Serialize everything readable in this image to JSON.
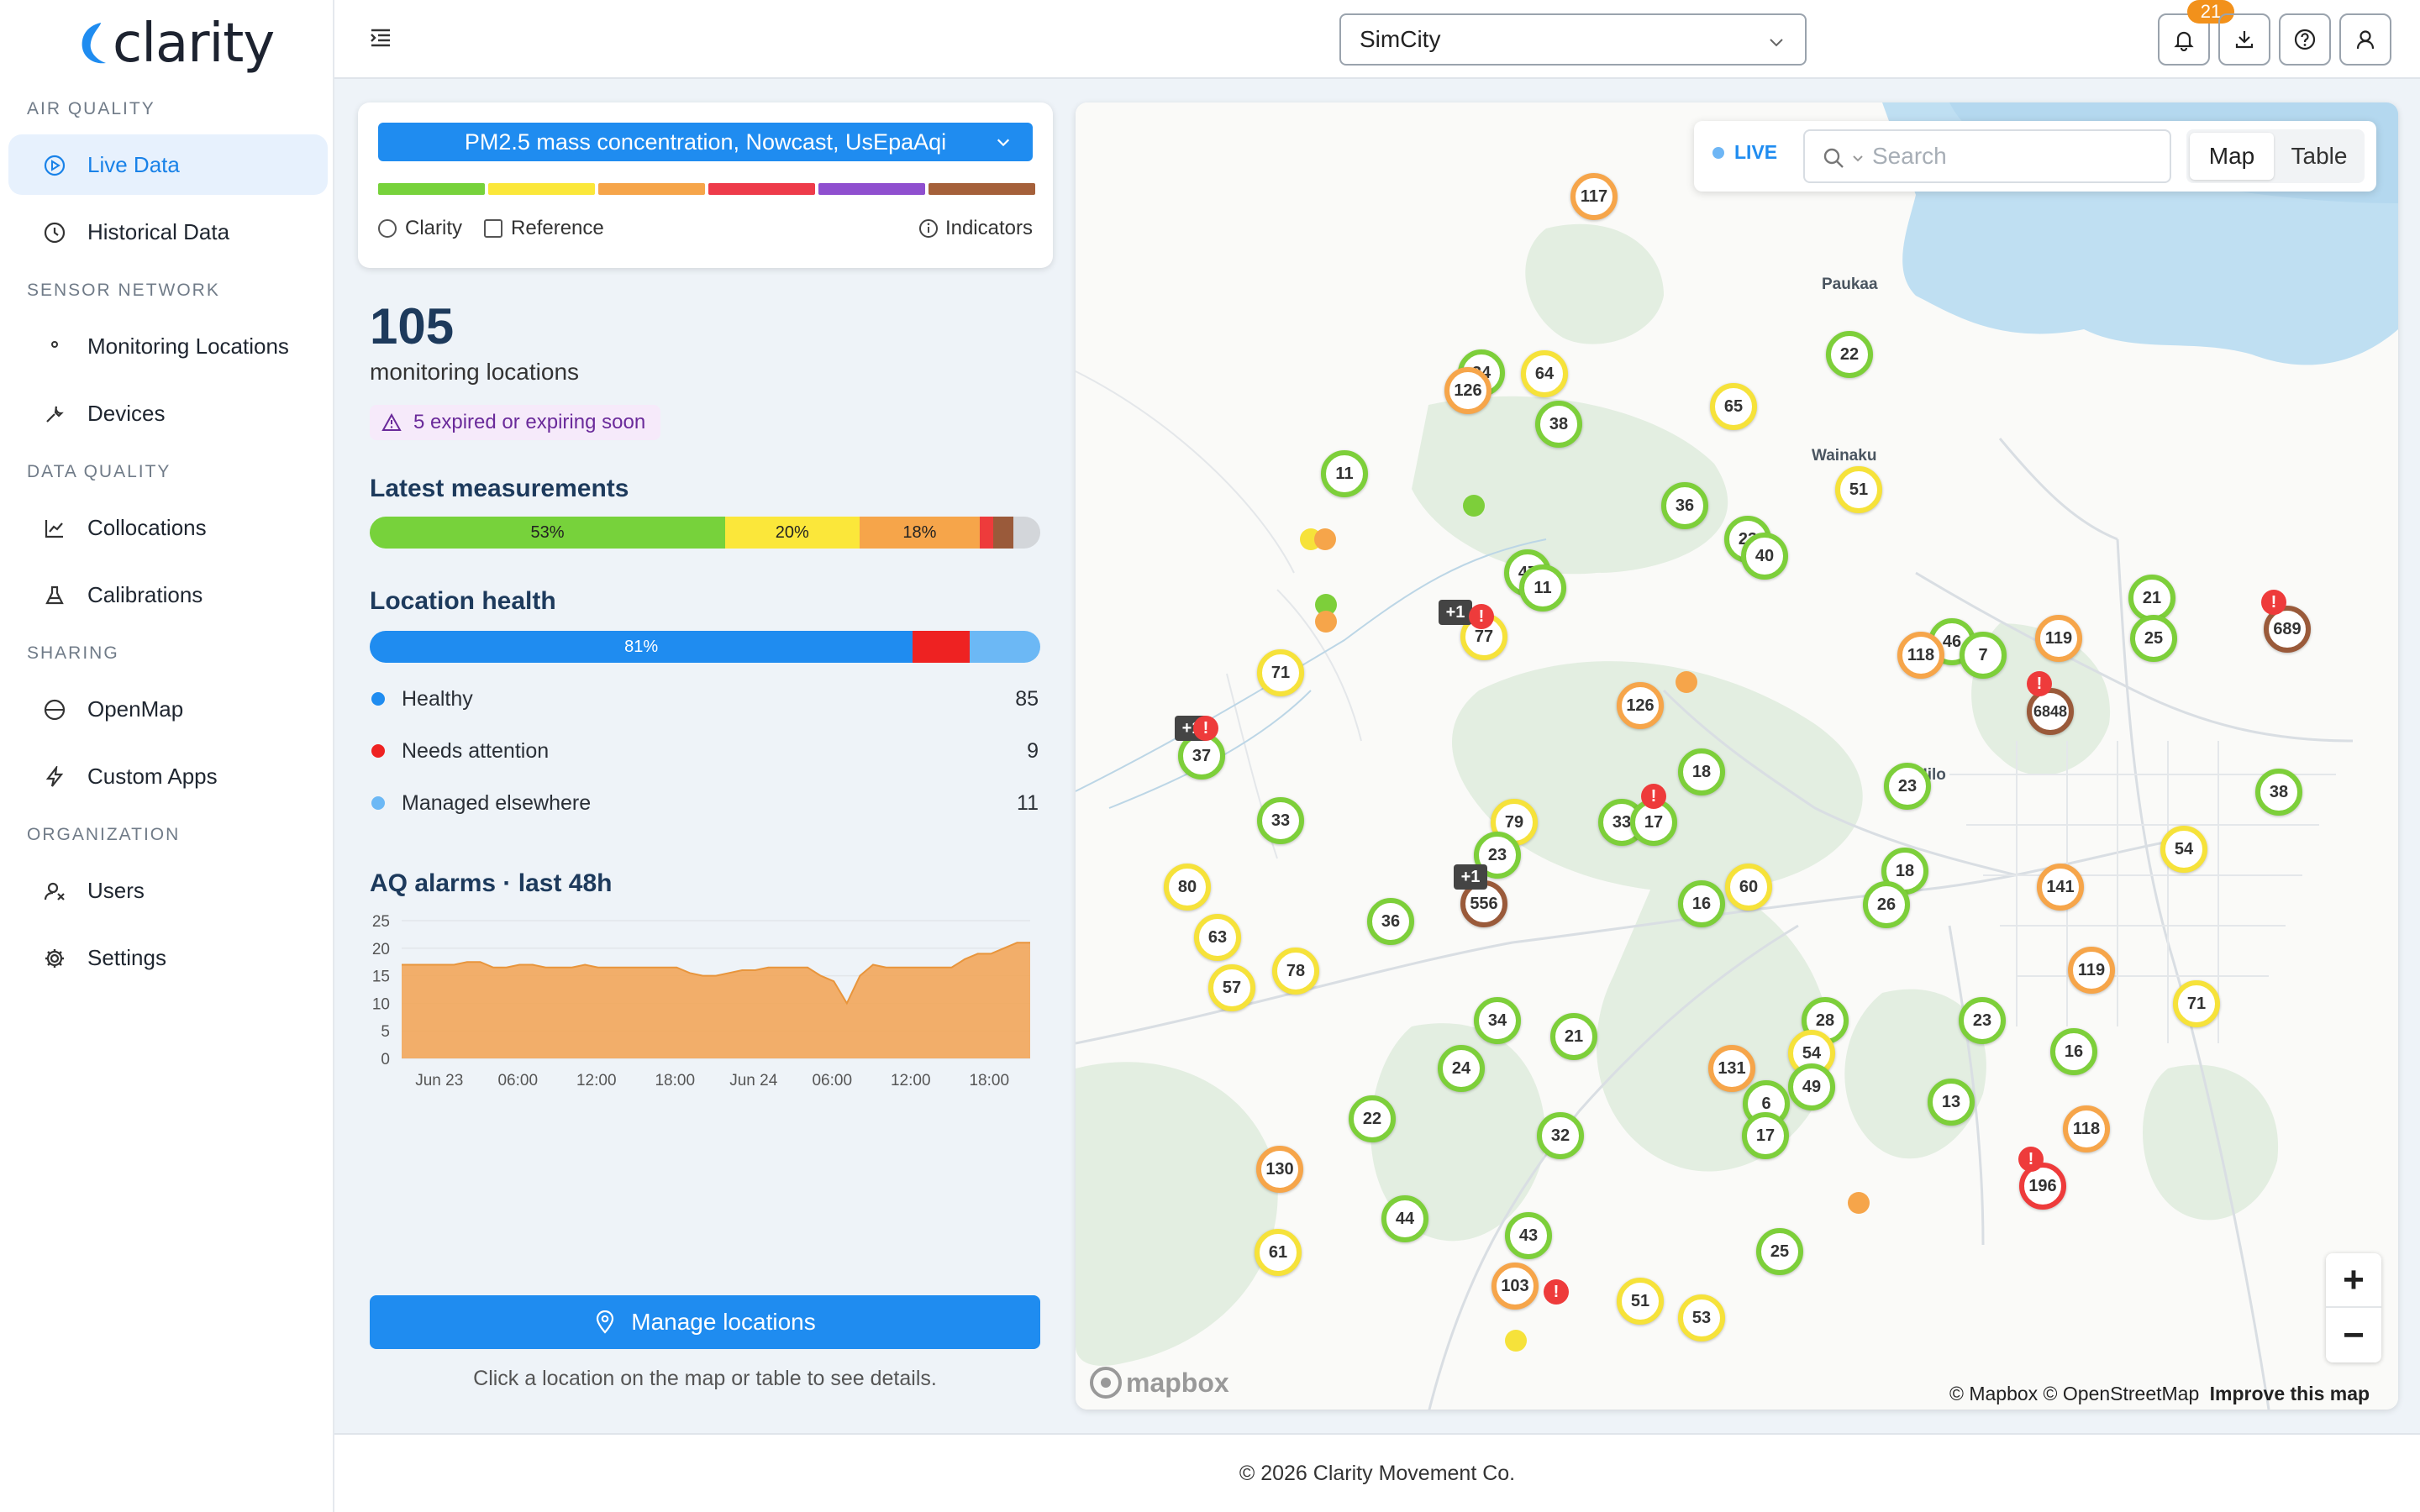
{
  "app": {
    "logo": "clarity",
    "footer": "© 2026 Clarity Movement Co."
  },
  "colors": {
    "accent": "#1f8cf0",
    "good": "#7dcf3a",
    "moderate": "#f6e23a",
    "usg": "#f6a54a",
    "unhealthy": "#ee3b3b",
    "very_unhealthy": "#8f4fcf",
    "hazardous": "#9a5a3a"
  },
  "sidebar": {
    "sections": [
      {
        "title": "AIR QUALITY",
        "items": [
          {
            "label": "Live Data",
            "icon": "play-circle-icon",
            "active": true
          },
          {
            "label": "Historical Data",
            "icon": "clock-icon"
          }
        ]
      },
      {
        "title": "SENSOR NETWORK",
        "items": [
          {
            "label": "Monitoring Locations",
            "icon": "map-pin-icon"
          },
          {
            "label": "Devices",
            "icon": "wrench-icon"
          }
        ]
      },
      {
        "title": "DATA QUALITY",
        "items": [
          {
            "label": "Collocations",
            "icon": "line-chart-icon"
          },
          {
            "label": "Calibrations",
            "icon": "flask-icon"
          }
        ]
      },
      {
        "title": "SHARING",
        "items": [
          {
            "label": "OpenMap",
            "icon": "globe-icon"
          },
          {
            "label": "Custom Apps",
            "icon": "bolt-icon"
          }
        ]
      },
      {
        "title": "ORGANIZATION",
        "items": [
          {
            "label": "Users",
            "icon": "users-icon"
          },
          {
            "label": "Settings",
            "icon": "gear-icon"
          }
        ]
      }
    ]
  },
  "topbar": {
    "org_select": "SimCity",
    "notifications": "21"
  },
  "panel": {
    "metric": "PM2.5 mass concentration, Nowcast, UsEpaAqi",
    "clarity": "Clarity",
    "reference": "Reference",
    "indicators": "Indicators"
  },
  "summary": {
    "count": "105",
    "count_label": "monitoring locations",
    "warning": "5 expired or expiring soon"
  },
  "latest": {
    "title": "Latest measurements",
    "segments": [
      {
        "label": "53%",
        "value": 53,
        "color": "#77d23b"
      },
      {
        "label": "20%",
        "value": 20,
        "color": "#fbe73a"
      },
      {
        "label": "18%",
        "value": 18,
        "color": "#f6a54a"
      },
      {
        "label": "",
        "value": 2,
        "color": "#ee3b3b"
      },
      {
        "label": "",
        "value": 3,
        "color": "#9a5a3a"
      },
      {
        "label": "",
        "value": 4,
        "color": "#d3d6da"
      }
    ]
  },
  "health": {
    "title": "Location health",
    "segments": [
      {
        "label": "81%",
        "value": 81,
        "color": "#1f8cf0"
      },
      {
        "label": "",
        "value": 8.5,
        "color": "#ee2222"
      },
      {
        "label": "",
        "value": 10.5,
        "color": "#6cb8f5"
      }
    ],
    "legend": [
      {
        "label": "Healthy",
        "count": "85",
        "color": "#1f8cf0"
      },
      {
        "label": "Needs attention",
        "count": "9",
        "color": "#ee2222"
      },
      {
        "label": "Managed elsewhere",
        "count": "11",
        "color": "#6cb8f5"
      }
    ]
  },
  "chart_data": {
    "type": "area",
    "title": "AQ alarms · last 48h",
    "xlabel": "",
    "ylabel": "",
    "yticks": [
      0,
      5,
      10,
      15,
      20,
      25
    ],
    "ylim": [
      0,
      25
    ],
    "xticks": [
      "Jun 23",
      "06:00",
      "12:00",
      "18:00",
      "Jun 24",
      "06:00",
      "12:00",
      "18:00"
    ],
    "grid": true,
    "color": "#f2a65a",
    "x_hours": [
      0,
      1,
      2,
      3,
      4,
      5,
      6,
      7,
      8,
      9,
      10,
      11,
      12,
      13,
      14,
      15,
      16,
      17,
      18,
      19,
      20,
      21,
      22,
      23,
      24,
      25,
      26,
      27,
      28,
      29,
      30,
      31,
      32,
      33,
      34,
      35,
      36,
      37,
      38,
      39,
      40,
      41,
      42,
      43,
      44,
      45,
      46,
      47,
      48
    ],
    "values": [
      17,
      17,
      17,
      17,
      17,
      17.5,
      17.5,
      16.5,
      16.5,
      17,
      17,
      16.5,
      16.5,
      16.5,
      17,
      16.5,
      16.5,
      16.5,
      16.5,
      16.5,
      16.5,
      16.5,
      15.5,
      15,
      15,
      15.5,
      16,
      16,
      16.5,
      16.5,
      16.5,
      16.5,
      15,
      14,
      10,
      15,
      17,
      16.5,
      16.5,
      16.5,
      16.5,
      16.5,
      16.5,
      18,
      19,
      19,
      20,
      21,
      21
    ]
  },
  "actions": {
    "manage": "Manage locations",
    "hint": "Click a location on the map or table to see details."
  },
  "map": {
    "live": "LIVE",
    "search_placeholder": "Search",
    "view_map": "Map",
    "view_table": "Table",
    "attribution": "© Mapbox © OpenStreetMap",
    "improve": "Improve this map",
    "mapbox": "mapbox",
    "places": [
      "Paukaa",
      "Wainaku",
      "Hilo"
    ],
    "markers": [
      [
        "117",
        "usg"
      ],
      [
        "22",
        "good"
      ],
      [
        "64",
        "mod"
      ],
      [
        "34",
        "good"
      ],
      [
        "126",
        "usg"
      ],
      [
        "38",
        "good"
      ],
      [
        "65",
        "mod"
      ],
      [
        "51",
        "mod"
      ],
      [
        "11",
        "good"
      ],
      [
        "36",
        "good"
      ],
      [
        "23",
        "good"
      ],
      [
        "40",
        "good"
      ],
      [
        "47",
        "good"
      ],
      [
        "11",
        "good"
      ],
      [
        "77",
        "mod"
      ],
      [
        "+1",
        "group"
      ],
      [
        "21",
        "good"
      ],
      [
        "25",
        "good"
      ],
      [
        "119",
        "usg"
      ],
      [
        "46",
        "good"
      ],
      [
        "118",
        "usg"
      ],
      [
        "7",
        "good"
      ],
      [
        "6848",
        "haz"
      ],
      [
        "689",
        "haz"
      ],
      [
        "71",
        "mod"
      ],
      [
        "37",
        "good"
      ],
      [
        "+1",
        "group"
      ],
      [
        "126",
        "usg"
      ],
      [
        "18",
        "good"
      ],
      [
        "23",
        "good"
      ],
      [
        "38",
        "good"
      ],
      [
        "33",
        "good"
      ],
      [
        "79",
        "mod"
      ],
      [
        "23",
        "good"
      ],
      [
        "33",
        "good"
      ],
      [
        "17",
        "good"
      ],
      [
        "556",
        "haz"
      ],
      [
        "+1",
        "group"
      ],
      [
        "54",
        "mod"
      ],
      [
        "80",
        "mod"
      ],
      [
        "63",
        "mod"
      ],
      [
        "57",
        "mod"
      ],
      [
        "78",
        "mod"
      ],
      [
        "36",
        "good"
      ],
      [
        "16",
        "good"
      ],
      [
        "60",
        "mod"
      ],
      [
        "18",
        "good"
      ],
      [
        "26",
        "good"
      ],
      [
        "141",
        "usg"
      ],
      [
        "119",
        "usg"
      ],
      [
        "71",
        "mod"
      ],
      [
        "34",
        "good"
      ],
      [
        "21",
        "good"
      ],
      [
        "28",
        "good"
      ],
      [
        "23",
        "good"
      ],
      [
        "24",
        "good"
      ],
      [
        "131",
        "usg"
      ],
      [
        "54",
        "mod"
      ],
      [
        "49",
        "good"
      ],
      [
        "6",
        "good"
      ],
      [
        "16",
        "good"
      ],
      [
        "22",
        "good"
      ],
      [
        "32",
        "good"
      ],
      [
        "17",
        "good"
      ],
      [
        "13",
        "good"
      ],
      [
        "118",
        "usg"
      ],
      [
        "130",
        "usg"
      ],
      [
        "196",
        "unh"
      ],
      [
        "44",
        "good"
      ],
      [
        "43",
        "good"
      ],
      [
        "25",
        "good"
      ],
      [
        "61",
        "mod"
      ],
      [
        "103",
        "usg"
      ],
      [
        "51",
        "mod"
      ],
      [
        "53",
        "mod"
      ]
    ]
  }
}
